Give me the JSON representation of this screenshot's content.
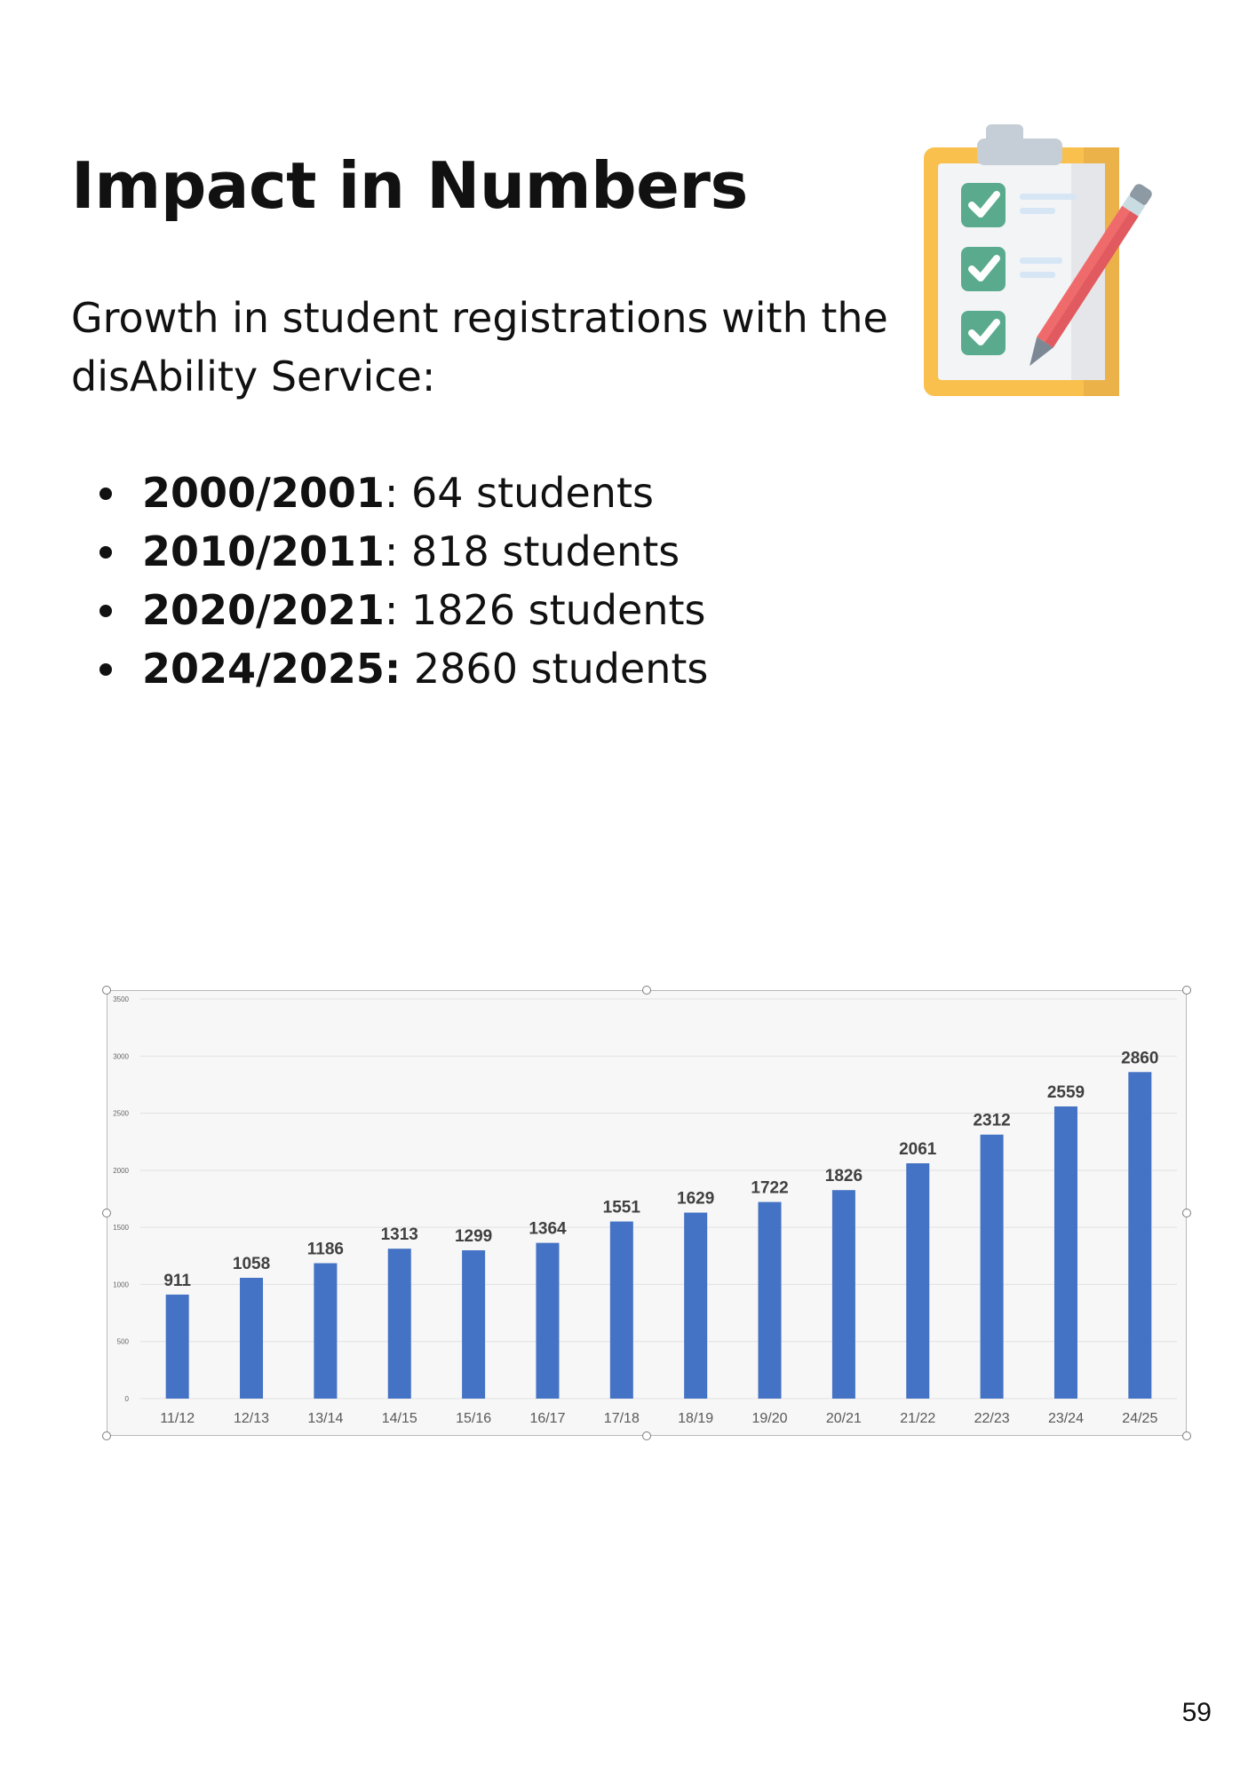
{
  "page": {
    "title": "Impact in Numbers",
    "intro": "Growth in student registrations with the disAbility Service:",
    "stats": [
      {
        "year": "2000/2001",
        "sep": ":",
        "value": " 64 students"
      },
      {
        "year": "2010/2011",
        "sep": ":",
        "value": " 818 students"
      },
      {
        "year": "2020/2021",
        "sep": ":",
        "value": " 1826 students"
      },
      {
        "year": "2024/2025:",
        "sep": "",
        "value": " 2860 students"
      }
    ],
    "page_number": "59",
    "illustration": "clipboard-checklist-with-pencil-icon"
  },
  "chart_data": {
    "type": "bar",
    "categories": [
      "11/12",
      "12/13",
      "13/14",
      "14/15",
      "15/16",
      "16/17",
      "17/18",
      "18/19",
      "19/20",
      "20/21",
      "21/22",
      "22/23",
      "23/24",
      "24/25"
    ],
    "values": [
      911,
      1058,
      1186,
      1313,
      1299,
      1364,
      1551,
      1629,
      1722,
      1826,
      2061,
      2312,
      2559,
      2860
    ],
    "yticks": [
      "0",
      "500",
      "1000",
      "1500",
      "2000",
      "2500",
      "3000",
      "3500"
    ],
    "ylim": [
      0,
      3500
    ],
    "grid": true,
    "title": "",
    "xlabel": "",
    "ylabel": "",
    "colors": {
      "bar": "#4472c4",
      "background": "#f7f7f7",
      "gridline": "#e1e1e1"
    }
  }
}
